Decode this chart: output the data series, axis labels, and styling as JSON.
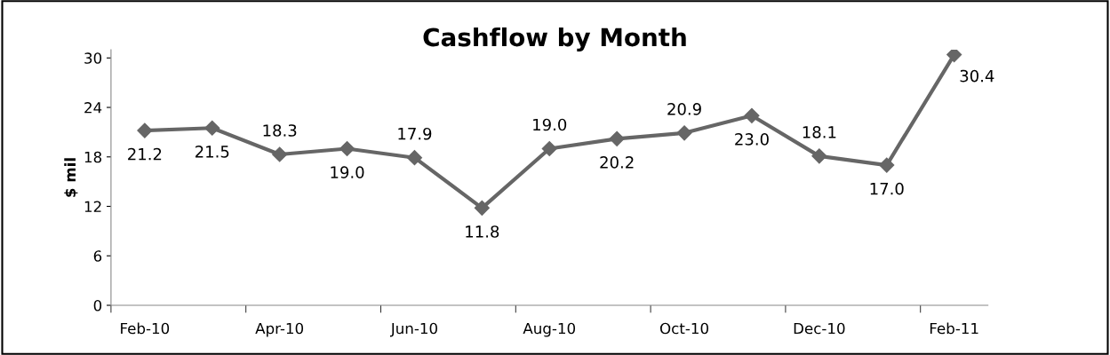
{
  "chart_data": {
    "type": "line",
    "title": "Cashflow by Month",
    "ylabel": "$ mil",
    "categories": [
      "Feb-10",
      null,
      "Apr-10",
      null,
      "Jun-10",
      null,
      "Aug-10",
      null,
      "Oct-10",
      null,
      "Dec-10",
      null,
      "Feb-11"
    ],
    "series": [
      {
        "color": "#666666",
        "values": [
          21.2,
          21.5,
          18.3,
          19.0,
          17.9,
          11.8,
          19.0,
          20.2,
          20.9,
          23.0,
          18.1,
          17.0,
          30.4
        ],
        "value_labels": [
          "21.2",
          "21.5",
          "18.3",
          "19.0",
          "17.9",
          "11.8",
          "19.0",
          "20.2",
          "20.9",
          "23.0",
          "18.1",
          "17.0",
          "30.4"
        ]
      }
    ],
    "ylim": [
      0,
      31
    ],
    "yticks": [
      0,
      6,
      12,
      18,
      24,
      30
    ],
    "marker": "diamond",
    "line_style": "solid",
    "grid": false,
    "legend": false
  }
}
